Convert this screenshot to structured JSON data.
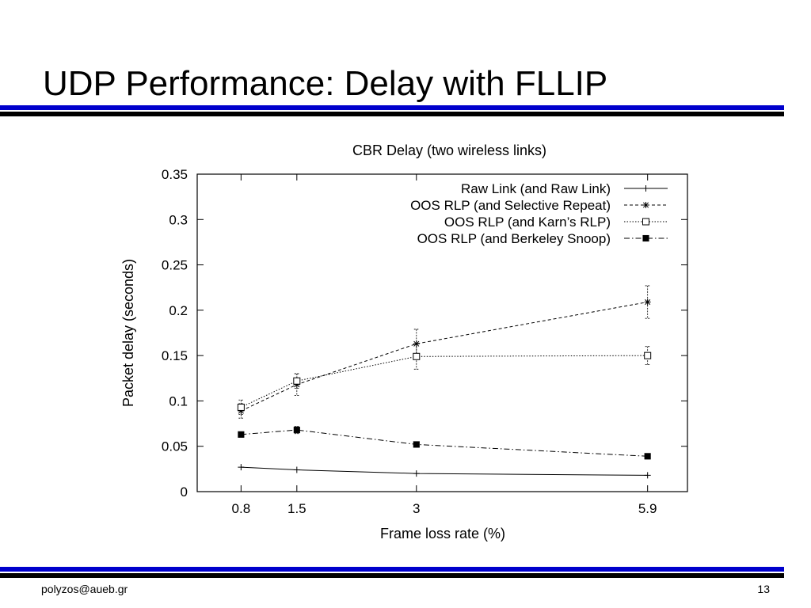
{
  "slide": {
    "title": "UDP Performance: Delay with FLLIP",
    "footer_left": "polyzos@aueb.gr",
    "footer_right": "13",
    "rule_color": "#0000cc"
  },
  "chart_data": {
    "type": "line",
    "title": "CBR Delay (two wireless links)",
    "xlabel": "Frame loss rate (%)",
    "ylabel": "Packet delay (seconds)",
    "x": [
      0.8,
      1.5,
      3,
      5.9
    ],
    "x_tick_labels": [
      "0.8",
      "1.5",
      "3",
      "5.9"
    ],
    "xlim": [
      0.25,
      6.4
    ],
    "ylim": [
      0,
      0.35
    ],
    "y_ticks": [
      0,
      0.05,
      0.1,
      0.15,
      0.2,
      0.25,
      0.3,
      0.35
    ],
    "y_tick_labels": [
      "0",
      "0.05",
      "0.1",
      "0.15",
      "0.2",
      "0.25",
      "0.3",
      "0.35"
    ],
    "grid": false,
    "legend_position": "top-right",
    "series": [
      {
        "name": "Raw Link (and Raw Link)",
        "values": [
          0.027,
          0.024,
          0.02,
          0.018
        ],
        "error": [
          0.0,
          0.0,
          0.0,
          0.0
        ],
        "marker": "plus",
        "dash": "solid"
      },
      {
        "name": "OOS RLP (and Selective Repeat)",
        "values": [
          0.089,
          0.118,
          0.163,
          0.209
        ],
        "error": [
          0.008,
          0.012,
          0.016,
          0.018
        ],
        "marker": "star",
        "dash": "dashed"
      },
      {
        "name": "OOS RLP (and Karn’s RLP)",
        "values": [
          0.093,
          0.122,
          0.149,
          0.15
        ],
        "error": [
          0.008,
          0.008,
          0.014,
          0.01
        ],
        "marker": "open-square",
        "dash": "dotted"
      },
      {
        "name": "OOS RLP (and Berkeley Snoop)",
        "values": [
          0.063,
          0.068,
          0.052,
          0.039
        ],
        "error": [
          0.003,
          0.004,
          0.002,
          0.001
        ],
        "marker": "filled-square",
        "dash": "dash-dot"
      }
    ]
  }
}
